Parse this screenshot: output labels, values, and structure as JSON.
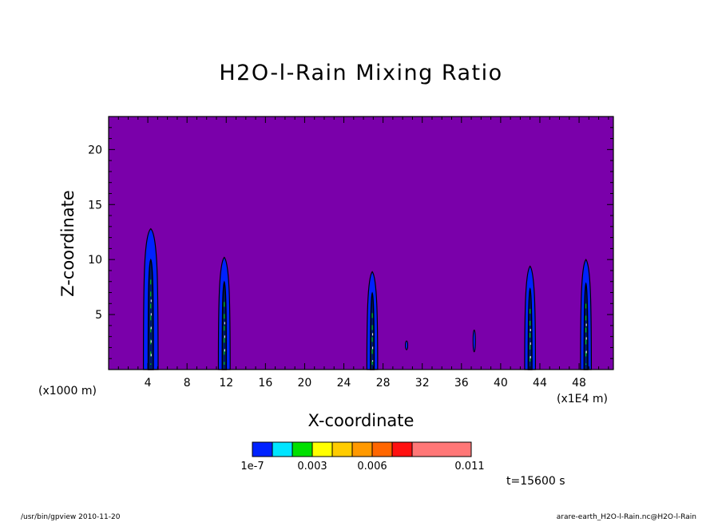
{
  "chart_data": {
    "type": "heatmap",
    "title": "H2O-l-Rain Mixing Ratio",
    "xlabel": "X-coordinate",
    "ylabel": "Z-coordinate",
    "x_unit": "(x1000 m)",
    "x_multiplier": "(x1E4 m)",
    "xlim": [
      0,
      51.5
    ],
    "ylim": [
      0,
      23
    ],
    "x_ticks": [
      4,
      8,
      12,
      16,
      20,
      24,
      28,
      32,
      36,
      40,
      44,
      48
    ],
    "y_ticks": [
      5,
      10,
      15,
      20
    ],
    "background_color": "#7a00aa",
    "colorbar": {
      "colors": [
        "#0022ff",
        "#00e5ff",
        "#00e000",
        "#ffff00",
        "#ffcc00",
        "#ff9900",
        "#ff6600",
        "#ff1111",
        "#ff7777"
      ],
      "labels": [
        "1e-7",
        "0.003",
        "0.006",
        "0.011"
      ]
    },
    "rain_cells": [
      {
        "x": 4.3,
        "z_top": 12.8,
        "half_width": 0.75
      },
      {
        "x": 11.8,
        "z_top": 10.2,
        "half_width": 0.6
      },
      {
        "x": 26.9,
        "z_top": 8.9,
        "half_width": 0.55
      },
      {
        "x": 43.0,
        "z_top": 9.4,
        "half_width": 0.55
      },
      {
        "x": 48.7,
        "z_top": 10.0,
        "half_width": 0.55
      }
    ],
    "small_cells": [
      {
        "x": 30.4,
        "z_low": 1.8,
        "z_high": 2.6
      },
      {
        "x": 37.3,
        "z_low": 1.6,
        "z_high": 3.6
      }
    ]
  },
  "timestamp": "t=15600 s",
  "footer_left": "/usr/bin/gpview   2010-11-20",
  "footer_right": "arare-earth_H2O-l-Rain.nc@H2O-l-Rain"
}
